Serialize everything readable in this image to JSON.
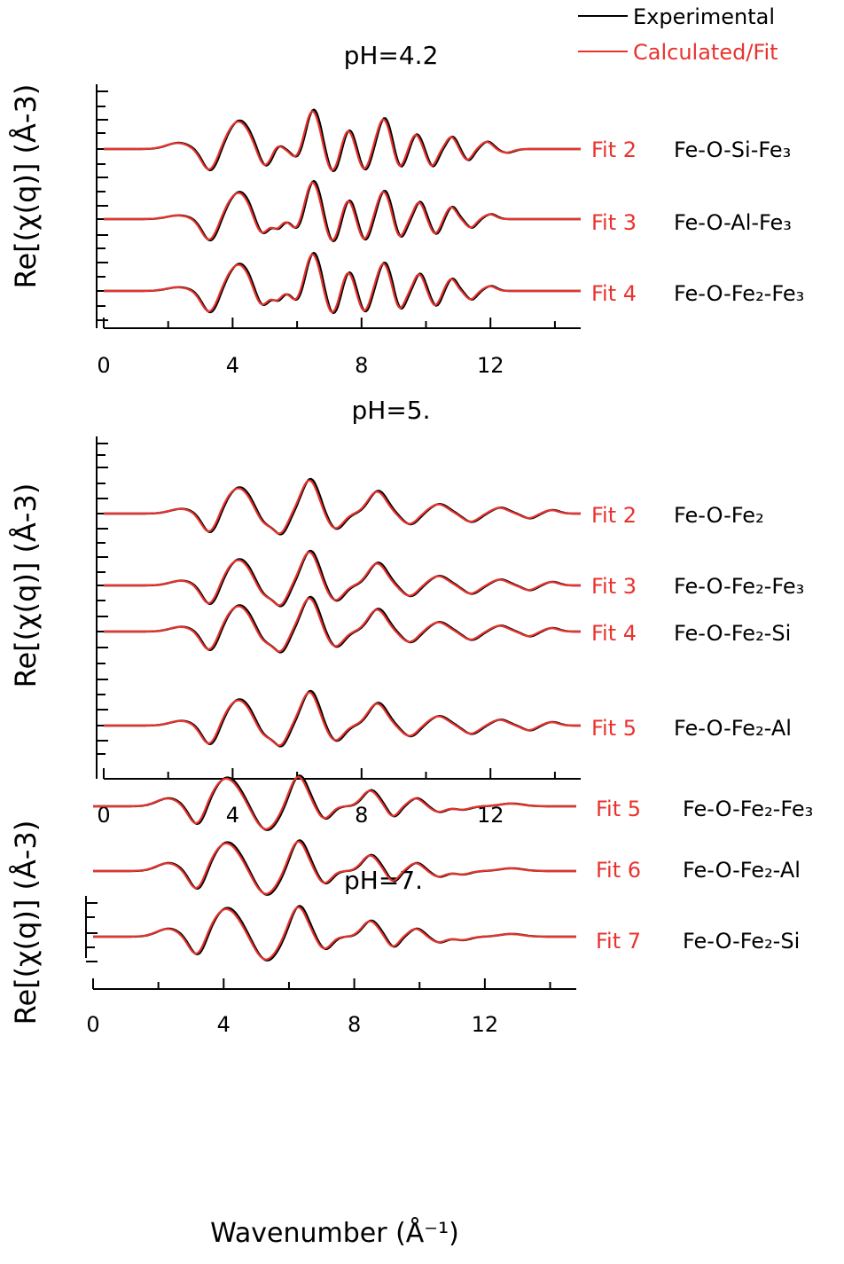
{
  "legend": {
    "items": [
      {
        "label": "Experimental",
        "color": "#000000"
      },
      {
        "label": "Calculated/Fit",
        "color": "#e8332e"
      }
    ]
  },
  "colors": {
    "experimental": "#000000",
    "fit": "#e8332e",
    "axis": "#000000"
  },
  "chart_data": [
    {
      "type": "line",
      "title": "pH=4.2",
      "ylabel": "Re[(χ(q)] (Å-3)",
      "xlabel": "",
      "xlim": [
        0,
        14.8
      ],
      "x_ticks": [
        0,
        4,
        8,
        12
      ],
      "y_ticks_shown": false,
      "series_groups": [
        {
          "fit_label": "Fit 2",
          "path_label": "Fe-O-Si-Fe₃",
          "offset": 2,
          "peaks": [
            [
              2.3,
              0.25,
              0.5
            ],
            [
              3.3,
              -0.9,
              0.35
            ],
            [
              4.2,
              1.15,
              0.5
            ],
            [
              5.0,
              -0.75,
              0.3
            ],
            [
              5.4,
              0.2,
              0.2
            ],
            [
              6.0,
              -0.4,
              0.25
            ],
            [
              6.5,
              1.6,
              0.32
            ],
            [
              7.1,
              -0.95,
              0.28
            ],
            [
              7.6,
              0.8,
              0.25
            ],
            [
              8.1,
              -0.85,
              0.25
            ],
            [
              8.7,
              1.25,
              0.28
            ],
            [
              9.2,
              -0.75,
              0.23
            ],
            [
              9.7,
              0.6,
              0.22
            ],
            [
              10.2,
              -0.7,
              0.22
            ],
            [
              10.8,
              0.5,
              0.22
            ],
            [
              11.3,
              -0.45,
              0.22
            ],
            [
              11.9,
              0.3,
              0.25
            ],
            [
              12.5,
              -0.15,
              0.3
            ]
          ]
        },
        {
          "fit_label": "Fit 3",
          "path_label": "Fe-O-Al-Fe₃",
          "offset": 1,
          "peaks": [
            [
              2.3,
              0.15,
              0.5
            ],
            [
              3.3,
              -0.9,
              0.35
            ],
            [
              4.2,
              1.1,
              0.5
            ],
            [
              4.9,
              -0.7,
              0.3
            ],
            [
              5.4,
              -0.35,
              0.2
            ],
            [
              6.0,
              -0.45,
              0.25
            ],
            [
              6.5,
              1.55,
              0.32
            ],
            [
              7.1,
              -0.95,
              0.28
            ],
            [
              7.6,
              0.8,
              0.25
            ],
            [
              8.1,
              -0.85,
              0.25
            ],
            [
              8.7,
              1.15,
              0.28
            ],
            [
              9.2,
              -0.75,
              0.23
            ],
            [
              9.8,
              0.7,
              0.22
            ],
            [
              10.3,
              -0.6,
              0.22
            ],
            [
              10.8,
              0.5,
              0.22
            ],
            [
              11.4,
              -0.35,
              0.22
            ],
            [
              12.0,
              0.2,
              0.25
            ]
          ]
        },
        {
          "fit_label": "Fit 4",
          "path_label": "Fe-O-Fe₂-Fe₃",
          "offset": 0,
          "peaks": [
            [
              2.3,
              0.15,
              0.5
            ],
            [
              3.3,
              -0.9,
              0.35
            ],
            [
              4.2,
              1.1,
              0.5
            ],
            [
              4.9,
              -0.7,
              0.3
            ],
            [
              5.4,
              -0.35,
              0.2
            ],
            [
              6.0,
              -0.45,
              0.25
            ],
            [
              6.5,
              1.55,
              0.32
            ],
            [
              7.1,
              -0.95,
              0.28
            ],
            [
              7.6,
              0.8,
              0.25
            ],
            [
              8.1,
              -0.85,
              0.25
            ],
            [
              8.7,
              1.15,
              0.28
            ],
            [
              9.2,
              -0.75,
              0.23
            ],
            [
              9.8,
              0.7,
              0.22
            ],
            [
              10.3,
              -0.6,
              0.22
            ],
            [
              10.8,
              0.5,
              0.22
            ],
            [
              11.4,
              -0.35,
              0.22
            ],
            [
              12.0,
              0.2,
              0.25
            ]
          ]
        }
      ]
    },
    {
      "type": "line",
      "title": "pH=5.",
      "ylabel": "Re[(χ(q)] (Å-3)",
      "xlabel": "",
      "xlim": [
        0,
        14.8
      ],
      "x_ticks": [
        0,
        4,
        8,
        12
      ],
      "y_ticks_shown": false,
      "series_groups": [
        {
          "fit_label": "Fit 2",
          "path_label": "Fe-O-Fe₂",
          "offset": 3,
          "peaks": [
            [
              2.4,
              0.2,
              0.5
            ],
            [
              3.3,
              -0.85,
              0.35
            ],
            [
              4.2,
              1.1,
              0.55
            ],
            [
              5.0,
              -0.5,
              0.35
            ],
            [
              5.5,
              -0.8,
              0.3
            ],
            [
              6.4,
              1.45,
              0.38
            ],
            [
              7.2,
              -0.65,
              0.35
            ],
            [
              8.5,
              0.95,
              0.4
            ],
            [
              9.5,
              -0.45,
              0.35
            ],
            [
              10.4,
              0.4,
              0.4
            ],
            [
              11.4,
              -0.35,
              0.35
            ],
            [
              12.3,
              0.25,
              0.35
            ],
            [
              13.2,
              -0.2,
              0.3
            ],
            [
              13.9,
              0.15,
              0.3
            ]
          ]
        },
        {
          "fit_label": "Fit 3",
          "path_label": "Fe-O-Fe₂-Fe₃",
          "offset": 2,
          "peaks": [
            [
              2.4,
              0.2,
              0.5
            ],
            [
              3.3,
              -0.85,
              0.35
            ],
            [
              4.2,
              1.1,
              0.55
            ],
            [
              5.0,
              -0.5,
              0.35
            ],
            [
              5.5,
              -0.8,
              0.3
            ],
            [
              6.4,
              1.45,
              0.38
            ],
            [
              7.2,
              -0.65,
              0.35
            ],
            [
              8.5,
              0.95,
              0.4
            ],
            [
              9.5,
              -0.45,
              0.35
            ],
            [
              10.4,
              0.4,
              0.4
            ],
            [
              11.4,
              -0.35,
              0.35
            ],
            [
              12.3,
              0.25,
              0.35
            ],
            [
              13.2,
              -0.2,
              0.3
            ],
            [
              13.9,
              0.15,
              0.3
            ]
          ]
        },
        {
          "fit_label": "Fit 4",
          "path_label": "Fe-O-Fe₂-Si",
          "offset": 1,
          "peaks": [
            [
              2.4,
              0.2,
              0.5
            ],
            [
              3.3,
              -0.85,
              0.35
            ],
            [
              4.2,
              1.1,
              0.55
            ],
            [
              5.0,
              -0.5,
              0.35
            ],
            [
              5.5,
              -0.8,
              0.3
            ],
            [
              6.4,
              1.45,
              0.38
            ],
            [
              7.2,
              -0.65,
              0.35
            ],
            [
              8.5,
              0.95,
              0.4
            ],
            [
              9.5,
              -0.45,
              0.35
            ],
            [
              10.4,
              0.4,
              0.4
            ],
            [
              11.4,
              -0.35,
              0.35
            ],
            [
              12.3,
              0.25,
              0.35
            ],
            [
              13.2,
              -0.2,
              0.3
            ],
            [
              13.9,
              0.15,
              0.3
            ]
          ]
        },
        {
          "fit_label": "Fit 5",
          "path_label": "Fe-O-Fe₂-Al",
          "offset": 0,
          "peaks": [
            [
              2.4,
              0.2,
              0.5
            ],
            [
              3.3,
              -0.85,
              0.35
            ],
            [
              4.2,
              1.1,
              0.55
            ],
            [
              5.0,
              -0.5,
              0.35
            ],
            [
              5.5,
              -0.8,
              0.3
            ],
            [
              6.4,
              1.45,
              0.38
            ],
            [
              7.2,
              -0.65,
              0.35
            ],
            [
              8.5,
              0.95,
              0.4
            ],
            [
              9.5,
              -0.45,
              0.35
            ],
            [
              10.4,
              0.4,
              0.4
            ],
            [
              11.4,
              -0.35,
              0.35
            ],
            [
              12.3,
              0.25,
              0.35
            ],
            [
              13.2,
              -0.2,
              0.3
            ],
            [
              13.9,
              0.15,
              0.3
            ]
          ]
        }
      ]
    },
    {
      "type": "line",
      "title": "pH=7.",
      "ylabel": "Re[(χ(q)] (Å-3)",
      "xlabel": "Wavenumber (Å⁻¹)",
      "xlim": [
        0,
        14.8
      ],
      "x_ticks": [
        0,
        4,
        8,
        12
      ],
      "y_ticks_shown": false,
      "series_groups": [
        {
          "fit_label": "Fit 5",
          "path_label": "Fe-O-Fe₂-Fe₃",
          "offset": 2,
          "peaks": [
            [
              2.3,
              0.35,
              0.5
            ],
            [
              3.2,
              -0.9,
              0.35
            ],
            [
              4.1,
              1.25,
              0.6
            ],
            [
              5.3,
              -1.05,
              0.5
            ],
            [
              6.3,
              1.35,
              0.38
            ],
            [
              7.1,
              -0.55,
              0.3
            ],
            [
              8.5,
              0.7,
              0.35
            ],
            [
              9.2,
              -0.45,
              0.25
            ],
            [
              9.9,
              0.35,
              0.3
            ],
            [
              10.6,
              -0.25,
              0.3
            ],
            [
              11.3,
              -0.15,
              0.35
            ],
            [
              12.8,
              0.12,
              0.5
            ]
          ]
        },
        {
          "fit_label": "Fit 6",
          "path_label": "Fe-O-Fe₂-Al",
          "offset": 1,
          "peaks": [
            [
              2.3,
              0.35,
              0.5
            ],
            [
              3.2,
              -0.9,
              0.35
            ],
            [
              4.1,
              1.25,
              0.6
            ],
            [
              5.3,
              -1.05,
              0.5
            ],
            [
              6.3,
              1.35,
              0.38
            ],
            [
              7.1,
              -0.55,
              0.3
            ],
            [
              8.5,
              0.7,
              0.35
            ],
            [
              9.2,
              -0.45,
              0.25
            ],
            [
              9.9,
              0.35,
              0.3
            ],
            [
              10.6,
              -0.25,
              0.3
            ],
            [
              11.3,
              -0.15,
              0.35
            ],
            [
              12.8,
              0.12,
              0.5
            ]
          ]
        },
        {
          "fit_label": "Fit 7",
          "path_label": "Fe-O-Fe₂-Si",
          "offset": 0,
          "peaks": [
            [
              2.3,
              0.35,
              0.5
            ],
            [
              3.2,
              -0.9,
              0.35
            ],
            [
              4.1,
              1.25,
              0.6
            ],
            [
              5.3,
              -1.05,
              0.5
            ],
            [
              6.3,
              1.35,
              0.38
            ],
            [
              7.1,
              -0.55,
              0.3
            ],
            [
              8.5,
              0.7,
              0.35
            ],
            [
              9.2,
              -0.45,
              0.25
            ],
            [
              9.9,
              0.35,
              0.3
            ],
            [
              10.6,
              -0.25,
              0.3
            ],
            [
              11.3,
              -0.15,
              0.35
            ],
            [
              12.8,
              0.12,
              0.5
            ]
          ]
        }
      ]
    }
  ]
}
